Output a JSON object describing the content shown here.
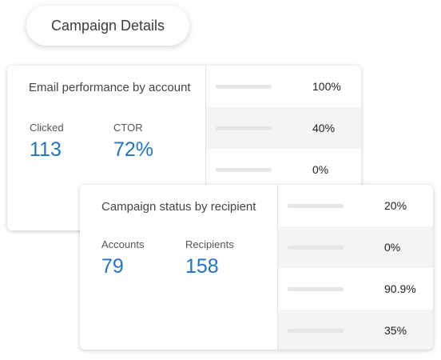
{
  "header": {
    "button_label": "Campaign Details"
  },
  "email_card": {
    "title": "Email performance by account",
    "stats": [
      {
        "label": "Clicked",
        "value": "113"
      },
      {
        "label": "CTOR",
        "value": "72%"
      }
    ],
    "rows": [
      {
        "value": "100%",
        "fraction": 1.0
      },
      {
        "value": "40%",
        "fraction": 0.4
      },
      {
        "value": "0%",
        "fraction": 0.0
      },
      {
        "value": "",
        "fraction": 0.0
      }
    ]
  },
  "status_card": {
    "title": "Campaign status by recipient",
    "stats": [
      {
        "label": "Accounts",
        "value": "79"
      },
      {
        "label": "Recipients",
        "value": "158"
      }
    ],
    "rows": [
      {
        "value": "20%",
        "fraction": 0.2
      },
      {
        "value": "0%",
        "fraction": 0.0
      },
      {
        "value": "90.9%",
        "fraction": 0.909
      },
      {
        "value": "35%",
        "fraction": 0.35
      }
    ]
  },
  "colors": {
    "accent": "#1f74c9",
    "row_shade": "#f4f4f4",
    "bar_track": "#e6e6e6"
  }
}
